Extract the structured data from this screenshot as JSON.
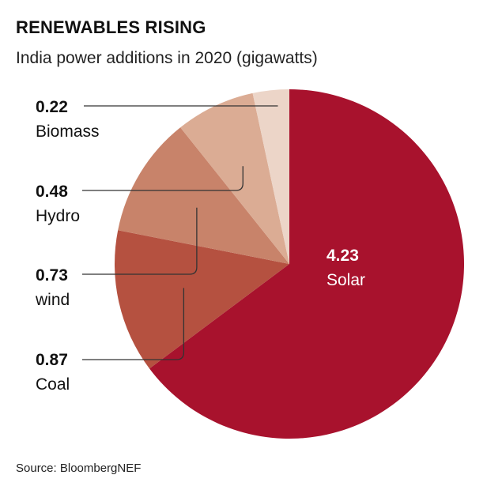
{
  "header": {
    "title": "RENEWABLES RISING",
    "subtitle": "India power additions in 2020 (gigawatts)"
  },
  "footer": {
    "source": "Source: BloombergNEF"
  },
  "chart_data": {
    "type": "pie",
    "title": "RENEWABLES RISING",
    "subtitle": "India power additions in 2020 (gigawatts)",
    "unit": "gigawatts",
    "slices": [
      {
        "label": "Solar",
        "value_label": "4.23",
        "value": 4.23,
        "color": "#a8122d"
      },
      {
        "label": "Coal",
        "value_label": "0.87",
        "value": 0.87,
        "color": "#b55140"
      },
      {
        "label": "wind",
        "value_label": "0.73",
        "value": 0.73,
        "color": "#c8836a"
      },
      {
        "label": "Hydro",
        "value_label": "0.48",
        "value": 0.48,
        "color": "#dbac94"
      },
      {
        "label": "Biomass",
        "value_label": "0.22",
        "value": 0.22,
        "color": "#ecd5c8"
      }
    ]
  }
}
